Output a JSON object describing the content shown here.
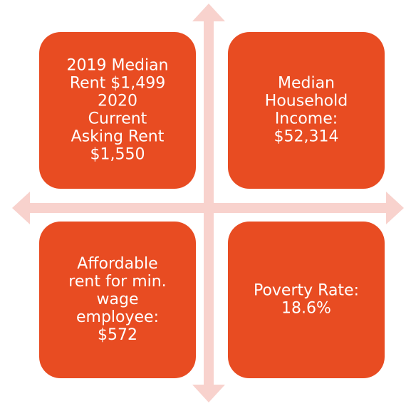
{
  "boxes": [
    {
      "lines": [
        "2019 Median",
        "Rent $1,499",
        "2020",
        "Current",
        "Asking Rent",
        "$1,550"
      ]
    },
    {
      "lines": [
        "Median",
        "Household",
        "Income:",
        "$52,314"
      ]
    },
    {
      "lines": [
        "Affordable",
        "rent for min.",
        "wage",
        "employee:",
        "$572"
      ]
    },
    {
      "lines": [
        "Poverty Rate:",
        "18.6%"
      ]
    }
  ]
}
